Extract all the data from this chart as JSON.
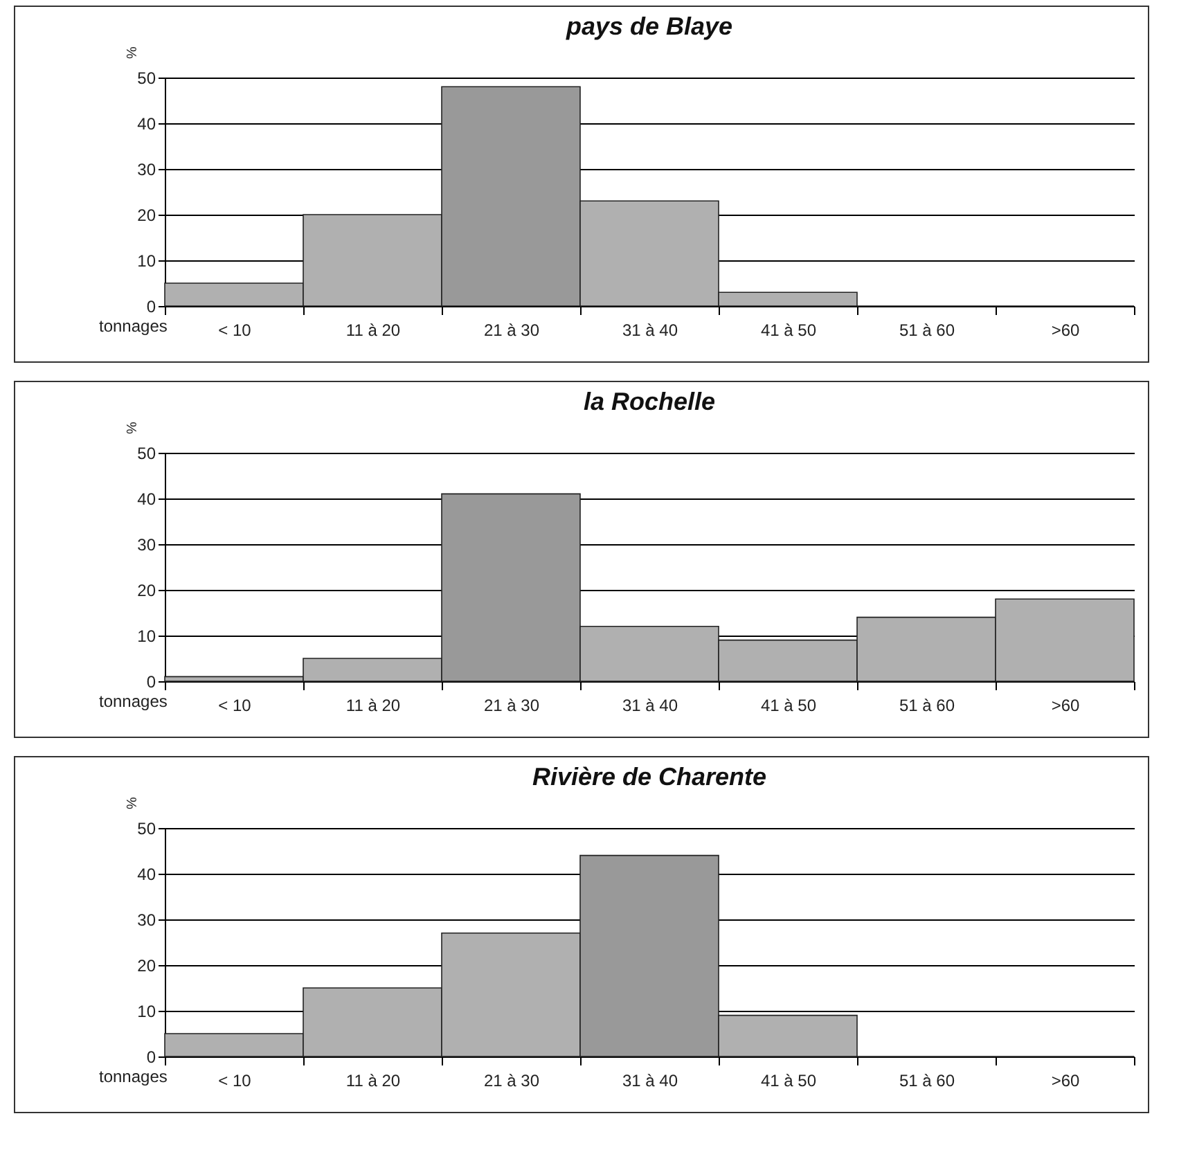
{
  "chart_data": [
    {
      "type": "bar",
      "title": "pays de Blaye",
      "xlabel": "tonnages",
      "ylabel": "%",
      "categories": [
        "< 10",
        "11 à 20",
        "21 à 30",
        "31 à 40",
        "41 à 50",
        "51 à 60",
        ">60"
      ],
      "values": [
        5,
        20,
        48,
        23,
        3,
        0,
        0
      ],
      "colors": [
        "#b0b0b0",
        "#b0b0b0",
        "#999999",
        "#b0b0b0",
        "#b0b0b0",
        "#b0b0b0",
        "#b0b0b0"
      ],
      "ylim": [
        0,
        50
      ],
      "yticks": [
        0,
        10,
        20,
        30,
        40,
        50
      ],
      "grid": "y"
    },
    {
      "type": "bar",
      "title": "la Rochelle",
      "xlabel": "tonnages",
      "ylabel": "%",
      "categories": [
        "< 10",
        "11 à 20",
        "21 à 30",
        "31 à 40",
        "41 à 50",
        "51 à 60",
        ">60"
      ],
      "values": [
        1,
        5,
        41,
        12,
        9,
        14,
        18
      ],
      "colors": [
        "#b0b0b0",
        "#b0b0b0",
        "#999999",
        "#b0b0b0",
        "#b0b0b0",
        "#b0b0b0",
        "#b0b0b0"
      ],
      "ylim": [
        0,
        50
      ],
      "yticks": [
        0,
        10,
        20,
        30,
        40,
        50
      ],
      "grid": "y"
    },
    {
      "type": "bar",
      "title": "Rivière de Charente",
      "xlabel": "tonnages",
      "ylabel": "%",
      "categories": [
        "< 10",
        "11 à 20",
        "21 à 30",
        "31 à 40",
        "41 à 50",
        "51 à 60",
        ">60"
      ],
      "values": [
        5,
        15,
        27,
        44,
        9,
        0,
        0
      ],
      "colors": [
        "#b0b0b0",
        "#b0b0b0",
        "#b0b0b0",
        "#999999",
        "#b0b0b0",
        "#b0b0b0",
        "#b0b0b0"
      ],
      "ylim": [
        0,
        50
      ],
      "yticks": [
        0,
        10,
        20,
        30,
        40,
        50
      ],
      "grid": "y"
    }
  ]
}
